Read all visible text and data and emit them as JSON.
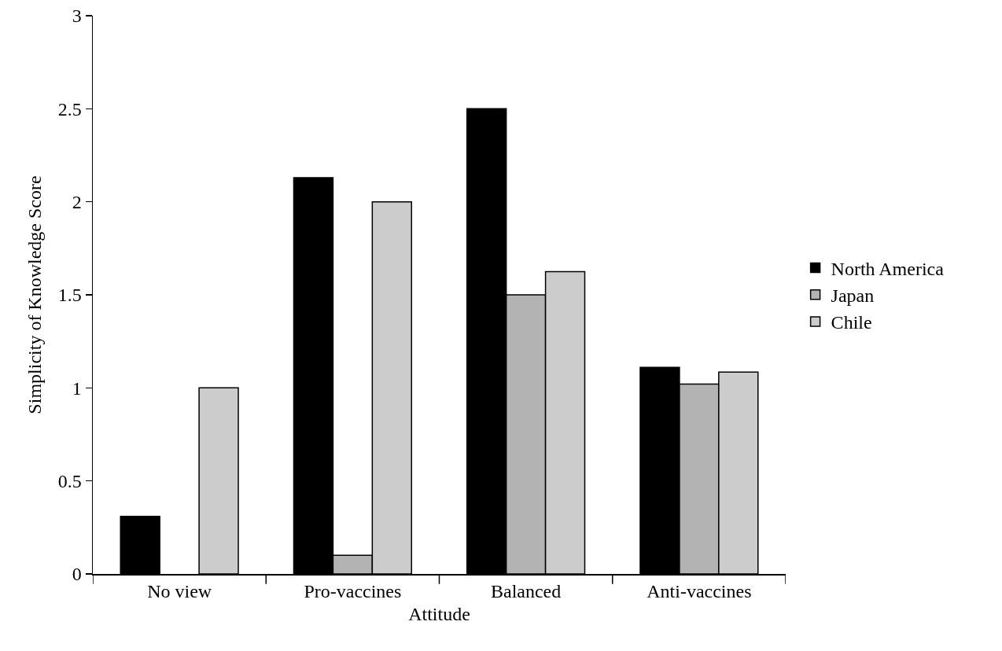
{
  "chart_data": {
    "type": "bar",
    "xlabel": "Attitude",
    "ylabel": "Simplicity of Knowledge Score",
    "categories": [
      "No view",
      "Pro-vaccines",
      "Balanced",
      "Anti-vaccines"
    ],
    "series": [
      {
        "name": "North America",
        "color": "#000000",
        "values": [
          0.31,
          2.13,
          2.5,
          1.11
        ]
      },
      {
        "name": "Japan",
        "color": "#b3b3b3",
        "values": [
          null,
          0.1,
          1.5,
          1.02
        ]
      },
      {
        "name": "Chile",
        "color": "#cccccc",
        "values": [
          1.0,
          2.0,
          1.625,
          1.085
        ]
      }
    ],
    "ylim": [
      0,
      3
    ],
    "yticks": [
      0,
      0.5,
      1,
      1.5,
      2,
      2.5,
      3
    ],
    "grid": false,
    "legend": "right"
  }
}
